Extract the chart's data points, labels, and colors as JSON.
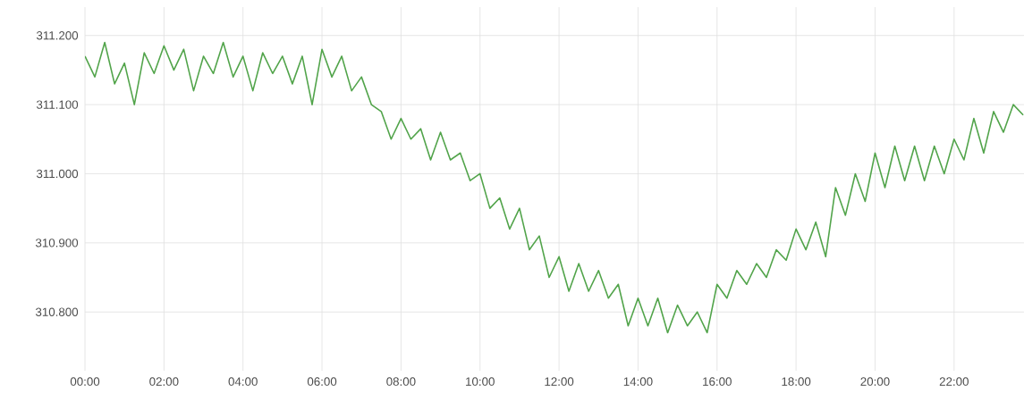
{
  "chart_data": {
    "type": "line",
    "x": [
      0,
      0.25,
      0.5,
      0.75,
      1,
      1.25,
      1.5,
      1.75,
      2,
      2.25,
      2.5,
      2.75,
      3,
      3.25,
      3.5,
      3.75,
      4,
      4.25,
      4.5,
      4.75,
      5,
      5.25,
      5.5,
      5.75,
      6,
      6.25,
      6.5,
      6.75,
      7,
      7.25,
      7.5,
      7.75,
      8,
      8.25,
      8.5,
      8.75,
      9,
      9.25,
      9.5,
      9.75,
      10,
      10.25,
      10.5,
      10.75,
      11,
      11.25,
      11.5,
      11.75,
      12,
      12.25,
      12.5,
      12.75,
      13,
      13.25,
      13.5,
      13.75,
      14,
      14.25,
      14.5,
      14.75,
      15,
      15.25,
      15.5,
      15.75,
      16,
      16.25,
      16.5,
      16.75,
      17,
      17.25,
      17.5,
      17.75,
      18,
      18.25,
      18.5,
      18.75,
      19,
      19.25,
      19.5,
      19.75,
      20,
      20.25,
      20.5,
      20.75,
      21,
      21.25,
      21.5,
      21.75,
      22,
      22.25,
      22.5,
      22.75,
      23,
      23.25,
      23.5,
      23.75
    ],
    "series": [
      {
        "color": "#52a44b",
        "values": [
          311.17,
          311.14,
          311.19,
          311.13,
          311.16,
          311.1,
          311.175,
          311.145,
          311.185,
          311.15,
          311.18,
          311.12,
          311.17,
          311.145,
          311.19,
          311.14,
          311.17,
          311.12,
          311.175,
          311.145,
          311.17,
          311.13,
          311.17,
          311.1,
          311.18,
          311.14,
          311.17,
          311.12,
          311.14,
          311.1,
          311.09,
          311.05,
          311.08,
          311.05,
          311.065,
          311.02,
          311.06,
          311.02,
          311.03,
          310.99,
          311.0,
          310.95,
          310.965,
          310.92,
          310.95,
          310.89,
          310.91,
          310.85,
          310.88,
          310.83,
          310.87,
          310.83,
          310.86,
          310.82,
          310.84,
          310.78,
          310.82,
          310.78,
          310.82,
          310.77,
          310.81,
          310.78,
          310.8,
          310.77,
          310.84,
          310.82,
          310.86,
          310.84,
          310.87,
          310.85,
          310.89,
          310.875,
          310.92,
          310.89,
          310.93,
          310.88,
          310.98,
          310.94,
          311.0,
          310.96,
          311.03,
          310.98,
          311.04,
          310.99,
          311.04,
          310.99,
          311.04,
          311.0,
          311.05,
          311.02,
          311.08,
          311.03,
          311.09,
          311.06,
          311.1,
          311.085
        ]
      }
    ],
    "xlim": [
      0,
      23.77
    ],
    "ylim": [
      310.715,
      311.241
    ],
    "xticks": [
      {
        "value": 0,
        "label": "00:00"
      },
      {
        "value": 2,
        "label": "02:00"
      },
      {
        "value": 4,
        "label": "04:00"
      },
      {
        "value": 6,
        "label": "06:00"
      },
      {
        "value": 8,
        "label": "08:00"
      },
      {
        "value": 10,
        "label": "10:00"
      },
      {
        "value": 12,
        "label": "12:00"
      },
      {
        "value": 14,
        "label": "14:00"
      },
      {
        "value": 16,
        "label": "16:00"
      },
      {
        "value": 18,
        "label": "18:00"
      },
      {
        "value": 20,
        "label": "20:00"
      },
      {
        "value": 22,
        "label": "22:00"
      }
    ],
    "yticks": [
      {
        "value": 310.8,
        "label": "310.800"
      },
      {
        "value": 310.9,
        "label": "310.900"
      },
      {
        "value": 311.0,
        "label": "311.000"
      },
      {
        "value": 311.1,
        "label": "311.100"
      },
      {
        "value": 311.2,
        "label": "311.200"
      }
    ],
    "grid": true,
    "marker": "none",
    "line_style": "solid"
  }
}
